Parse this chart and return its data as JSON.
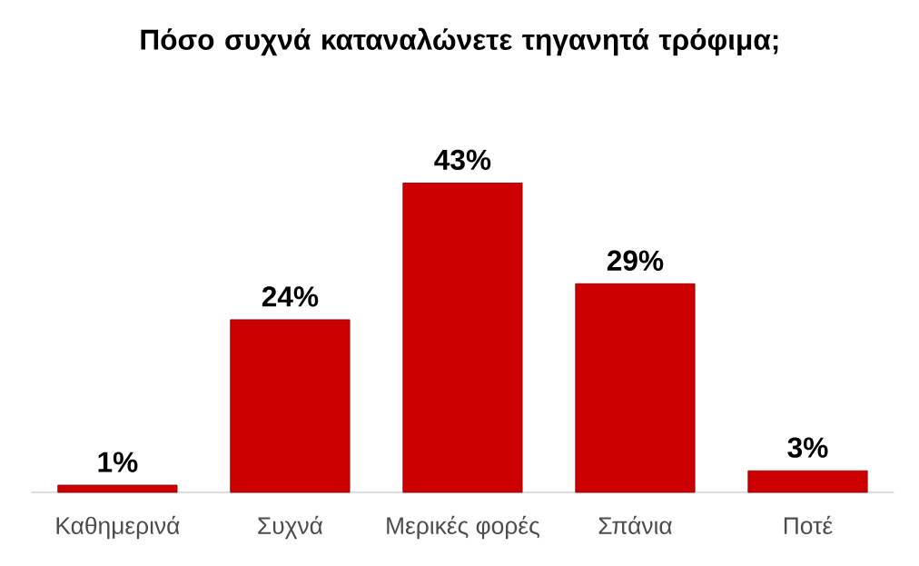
{
  "chart_data": {
    "type": "bar",
    "title": "Πόσο συχνά καταναλώνετε τηγανητά τρόφιμα;",
    "categories": [
      "Καθημερινά",
      "Συχνά",
      "Μερικές φορές",
      "Σπάνια",
      "Ποτέ"
    ],
    "values": [
      1,
      24,
      43,
      29,
      3
    ],
    "value_labels": [
      "1%",
      "24%",
      "43%",
      "29%",
      "3%"
    ],
    "color": "#cc0000"
  }
}
